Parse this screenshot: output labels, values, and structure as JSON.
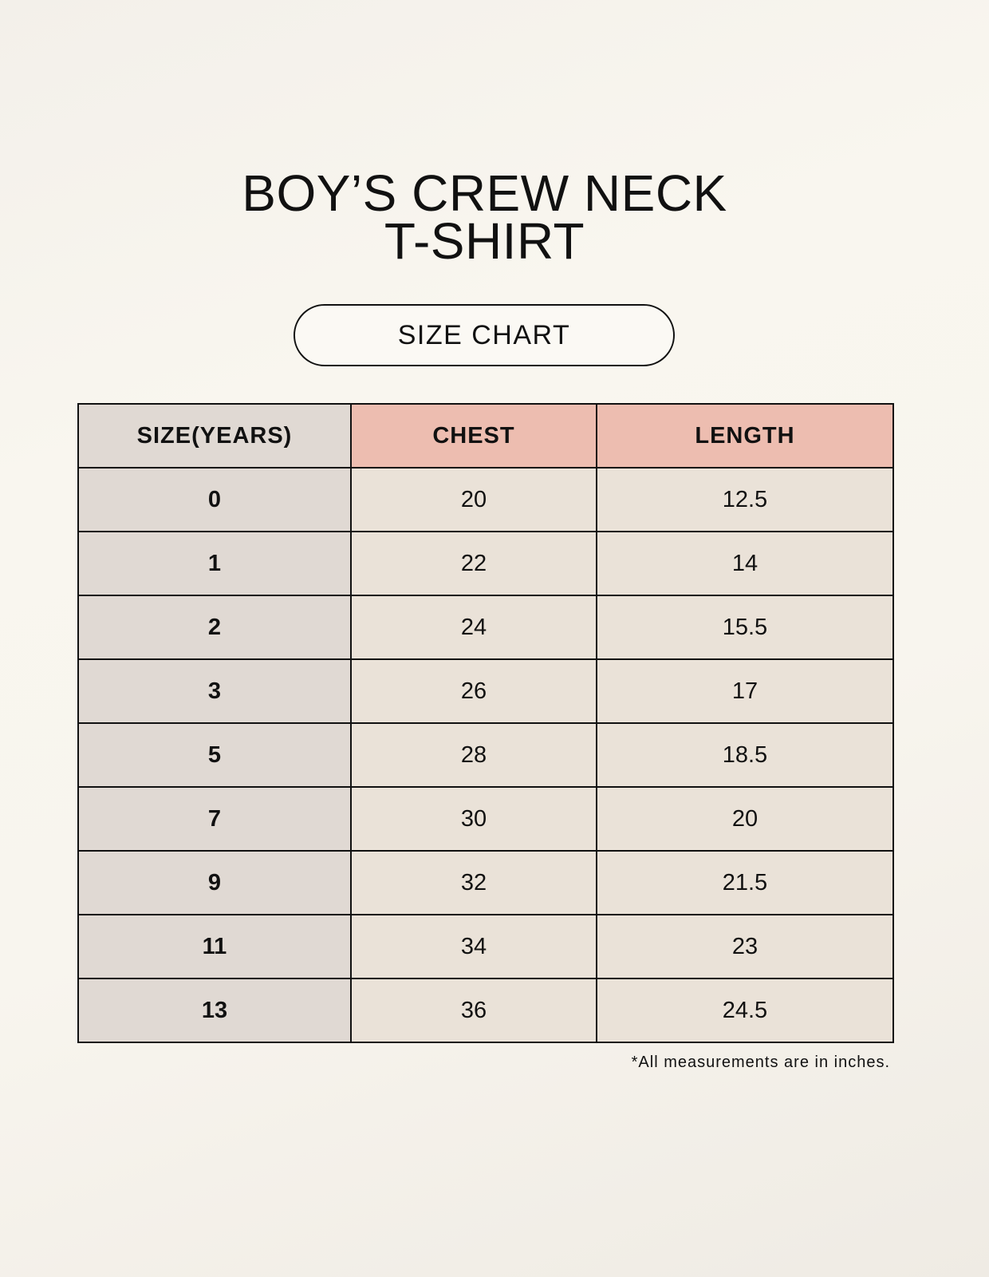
{
  "title_line1": "BOY’S CREW NECK",
  "title_line2": "T-SHIRT",
  "subtitle": "SIZE CHART",
  "table": {
    "headers": [
      "SIZE(YEARS)",
      "CHEST",
      "LENGTH"
    ],
    "rows": [
      [
        "0",
        "20",
        "12.5"
      ],
      [
        "1",
        "22",
        "14"
      ],
      [
        "2",
        "24",
        "15.5"
      ],
      [
        "3",
        "26",
        "17"
      ],
      [
        "5",
        "28",
        "18.5"
      ],
      [
        "7",
        "30",
        "20"
      ],
      [
        "9",
        "32",
        "21.5"
      ],
      [
        "11",
        "34",
        "23"
      ],
      [
        "13",
        "36",
        "24.5"
      ]
    ]
  },
  "footnote": "*All measurements are in inches.",
  "colors": {
    "header_size": "#e0d9d3",
    "header_accent": "#edbdb0",
    "cell": "#eae2d8"
  }
}
